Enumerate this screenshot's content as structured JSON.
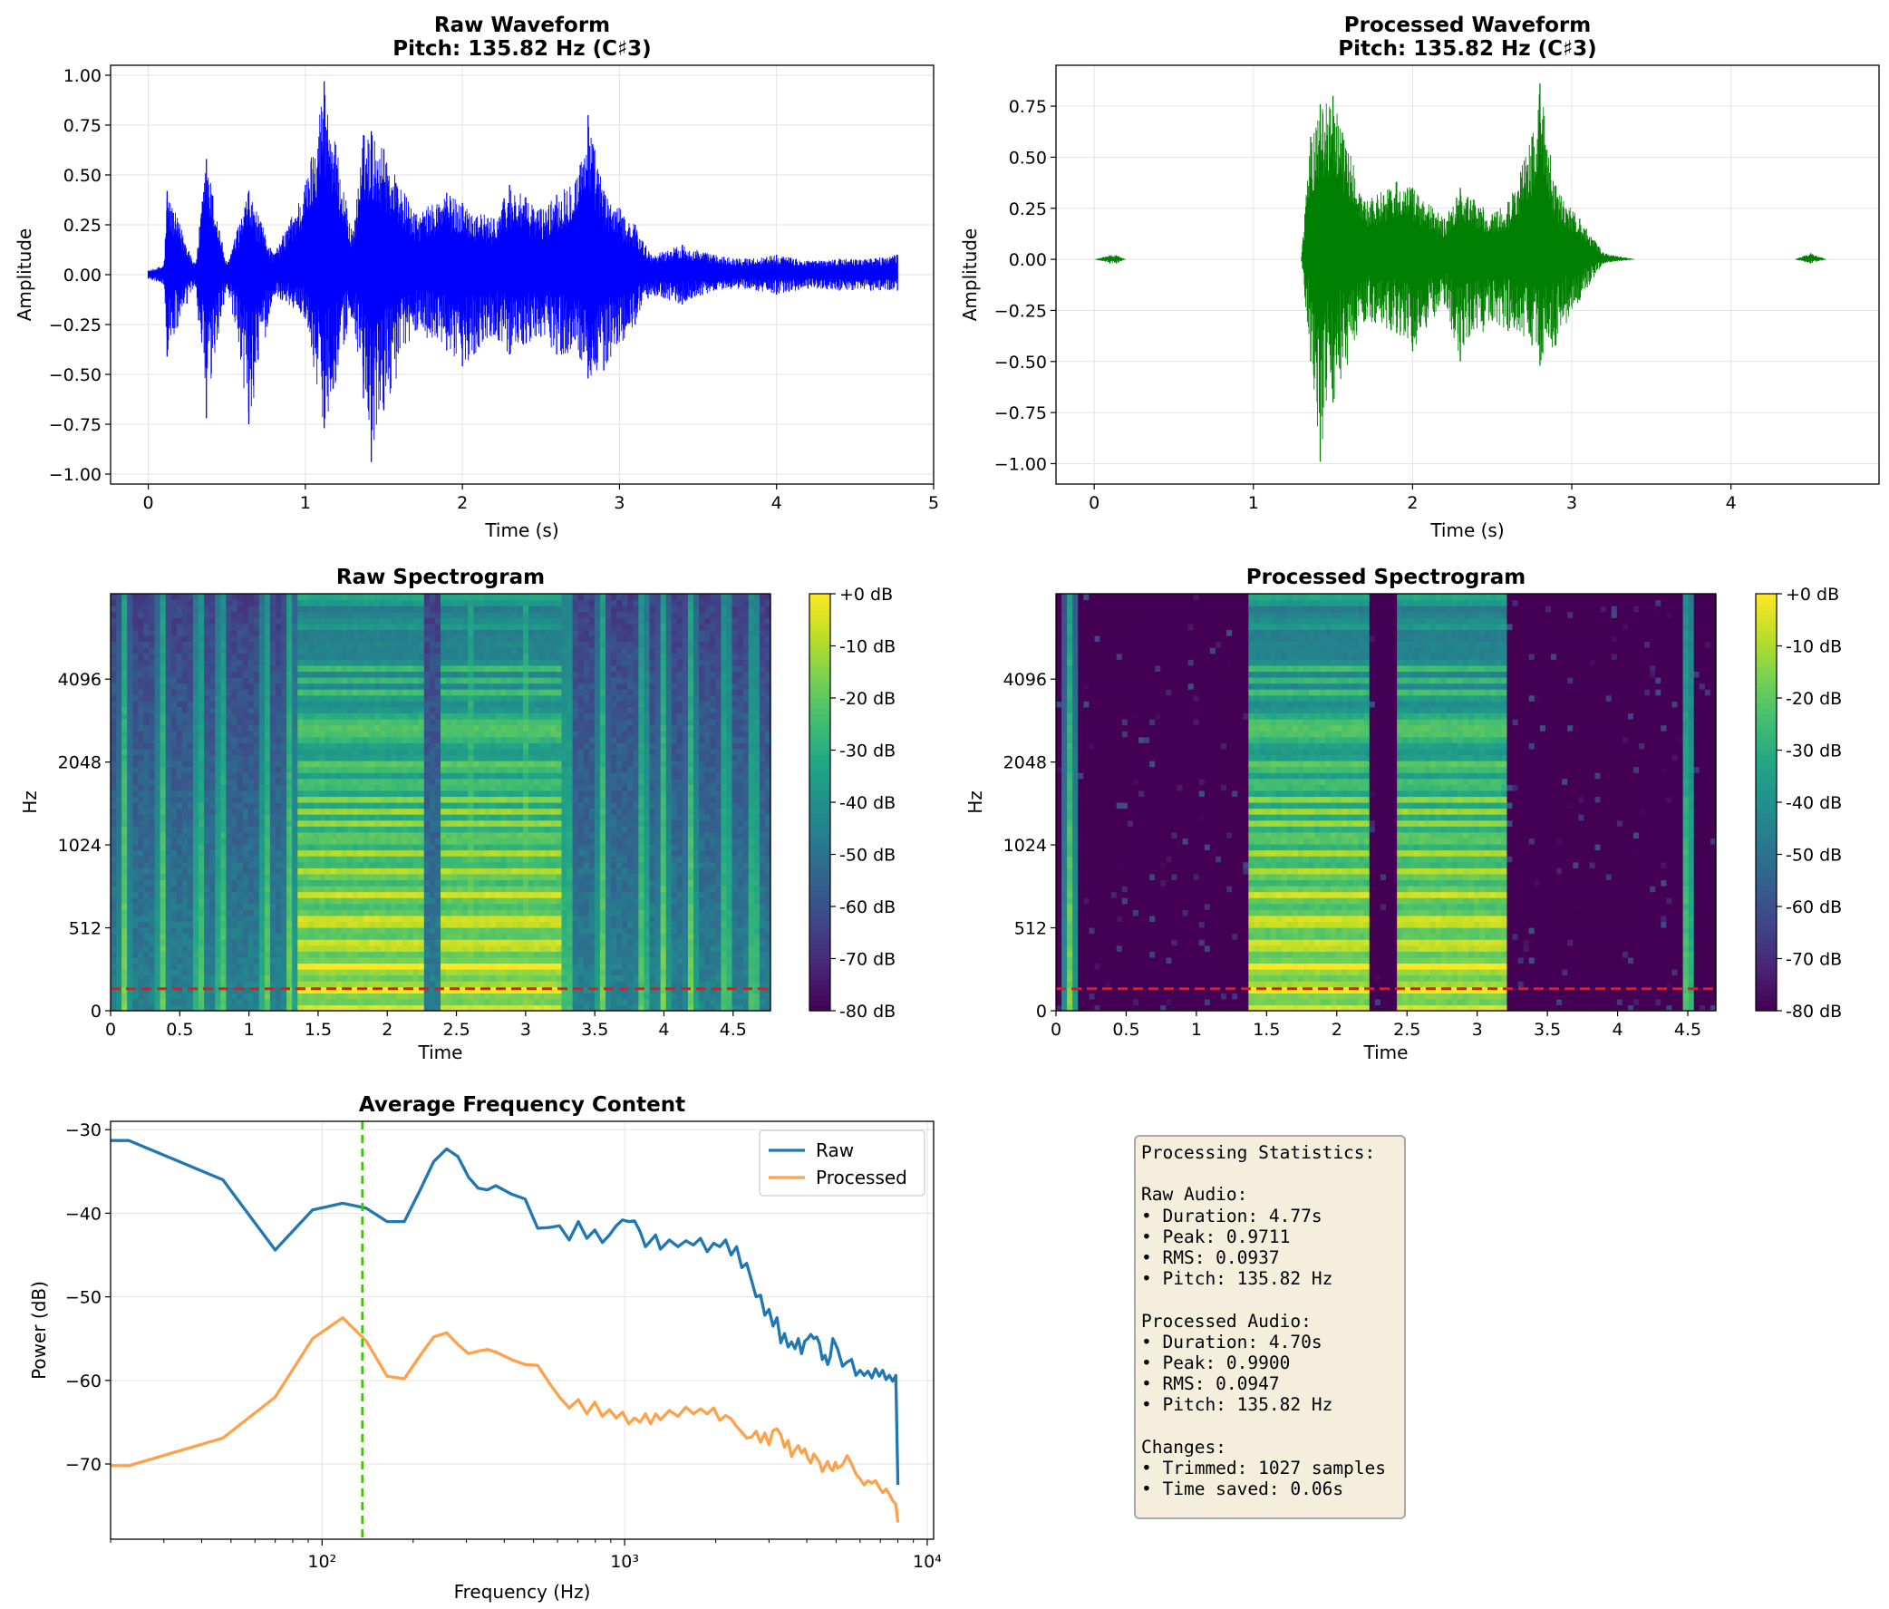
{
  "chart_data": [
    {
      "type": "line",
      "title": "Raw Waveform\nPitch: 135.82 Hz (C♯3)",
      "xlabel": "Time (s)",
      "ylabel": "Amplitude",
      "xlim": [
        -0.24,
        5.0
      ],
      "ylim": [
        -1.05,
        1.05
      ],
      "xticks": [
        "0",
        "1",
        "2",
        "3",
        "4",
        "5"
      ],
      "yticks": [
        "1.00",
        "0.75",
        "0.50",
        "0.25",
        "0.00",
        "−0.25",
        "−0.50",
        "−0.75",
        "−1.00"
      ],
      "color": "#0000ff",
      "duration": 4.77,
      "envelope": {
        "t": [
          0.0,
          0.1,
          0.12,
          0.3,
          0.37,
          0.5,
          0.64,
          0.8,
          1.0,
          1.12,
          1.3,
          1.37,
          1.42,
          1.5,
          1.7,
          1.9,
          2.0,
          2.2,
          2.3,
          2.5,
          2.6,
          2.75,
          2.8,
          2.9,
          3.1,
          3.2,
          3.4,
          3.6,
          3.8,
          4.0,
          4.2,
          4.4,
          4.6,
          4.77
        ],
        "max": [
          0.02,
          0.05,
          0.42,
          0.05,
          0.58,
          0.05,
          0.42,
          0.1,
          0.45,
          0.97,
          0.2,
          0.7,
          0.72,
          0.63,
          0.3,
          0.41,
          0.36,
          0.28,
          0.45,
          0.33,
          0.4,
          0.55,
          0.8,
          0.42,
          0.25,
          0.1,
          0.15,
          0.1,
          0.08,
          0.1,
          0.07,
          0.08,
          0.08,
          0.1
        ],
        "min": [
          -0.02,
          -0.05,
          -0.41,
          -0.05,
          -0.72,
          -0.05,
          -0.75,
          -0.1,
          -0.22,
          -0.77,
          -0.2,
          -0.62,
          -0.94,
          -0.68,
          -0.28,
          -0.38,
          -0.46,
          -0.3,
          -0.4,
          -0.31,
          -0.4,
          -0.42,
          -0.52,
          -0.48,
          -0.25,
          -0.1,
          -0.15,
          -0.08,
          -0.07,
          -0.1,
          -0.07,
          -0.08,
          -0.08,
          -0.08
        ]
      }
    },
    {
      "type": "line",
      "title": "Processed Waveform\nPitch: 135.82 Hz (C♯3)",
      "xlabel": "Time (s)",
      "ylabel": "Amplitude",
      "xlim": [
        -0.24,
        4.93
      ],
      "ylim": [
        -1.1,
        0.95
      ],
      "xticks": [
        "0",
        "1",
        "2",
        "3",
        "4"
      ],
      "yticks": [
        "0.75",
        "0.50",
        "0.25",
        "0.00",
        "−0.25",
        "−0.50",
        "−0.75",
        "−1.00"
      ],
      "color": "#008000",
      "duration": 4.7,
      "envelope": {
        "t": [
          0.0,
          0.1,
          0.14,
          0.2,
          1.3,
          1.36,
          1.42,
          1.5,
          1.7,
          1.9,
          2.0,
          2.2,
          2.3,
          2.5,
          2.6,
          2.75,
          2.8,
          2.9,
          3.05,
          3.2,
          3.4,
          4.4,
          4.5,
          4.6,
          4.7
        ],
        "max": [
          0.0,
          0.02,
          0.02,
          0.0,
          0.0,
          0.6,
          0.76,
          0.8,
          0.28,
          0.38,
          0.35,
          0.2,
          0.35,
          0.22,
          0.28,
          0.6,
          0.86,
          0.36,
          0.2,
          0.03,
          0.0,
          0.0,
          0.03,
          0.0,
          0.0
        ],
        "min": [
          0.0,
          -0.02,
          -0.02,
          0.0,
          0.0,
          -0.5,
          -0.99,
          -0.7,
          -0.3,
          -0.36,
          -0.45,
          -0.22,
          -0.5,
          -0.3,
          -0.35,
          -0.42,
          -0.52,
          -0.42,
          -0.2,
          -0.02,
          0.0,
          0.0,
          -0.02,
          0.0,
          0.0
        ]
      }
    },
    {
      "type": "heatmap",
      "title": "Raw Spectrogram",
      "xlabel": "Time",
      "ylabel": "Hz",
      "xticks": [
        "0",
        "0.5",
        "1",
        "1.5",
        "2",
        "2.5",
        "3",
        "3.5",
        "4",
        "4.5"
      ],
      "yticks": [
        "0",
        "512",
        "1024",
        "2048",
        "4096"
      ],
      "colorbar_ticks": [
        "+0 dB",
        "-10 dB",
        "-20 dB",
        "-30 dB",
        "-40 dB",
        "-50 dB",
        "-60 dB",
        "-70 dB",
        "-80 dB"
      ],
      "colormap": "viridis",
      "pitch_line_hz": 135.82,
      "pitch_line_color": "#e41a1c",
      "duration": 4.77,
      "transients_s": [
        0.1,
        0.37,
        0.64,
        0.8,
        1.12,
        1.3,
        2.6,
        3.0,
        3.3,
        3.55,
        3.85,
        4.0,
        4.2,
        4.45,
        4.65
      ],
      "voiced_segments_s": [
        [
          1.35,
          2.25
        ],
        [
          2.4,
          3.25
        ]
      ],
      "noise_floor_db": -45
    },
    {
      "type": "heatmap",
      "title": "Processed Spectrogram",
      "xlabel": "Time",
      "ylabel": "Hz",
      "xticks": [
        "0",
        "0.5",
        "1",
        "1.5",
        "2",
        "2.5",
        "3",
        "3.5",
        "4",
        "4.5"
      ],
      "yticks": [
        "0",
        "512",
        "1024",
        "2048",
        "4096"
      ],
      "colorbar_ticks": [
        "+0 dB",
        "-10 dB",
        "-20 dB",
        "-30 dB",
        "-40 dB",
        "-50 dB",
        "-60 dB",
        "-70 dB",
        "-80 dB"
      ],
      "colormap": "viridis",
      "pitch_line_hz": 135.82,
      "pitch_line_color": "#e41a1c",
      "duration": 4.7,
      "transients_s": [
        0.1,
        4.5
      ],
      "voiced_segments_s": [
        [
          1.36,
          2.25
        ],
        [
          2.42,
          3.2
        ]
      ],
      "noise_floor_db": -80
    },
    {
      "type": "line",
      "title": "Average Frequency Content",
      "xlabel": "Frequency (Hz)",
      "ylabel": "Power (dB)",
      "xscale": "log",
      "xlim": [
        20,
        10500
      ],
      "ylim": [
        -79,
        -29
      ],
      "yticks": [
        -30,
        -40,
        -50,
        -60,
        -70
      ],
      "xticks": [
        "10²",
        "10³",
        "10⁴"
      ],
      "grid": true,
      "legend": "top-right",
      "vline_hz": 135.82,
      "vline_color": "#33cc00",
      "series": [
        {
          "name": "Raw",
          "color": "#1f77b4",
          "x": [
            20,
            23,
            47,
            70,
            93,
            117,
            140,
            164,
            187,
            211,
            234,
            258,
            281,
            305,
            328,
            352,
            375,
            422,
            469,
            516,
            563,
            609,
            656,
            703,
            750,
            797,
            844,
            891,
            938,
            984,
            1031,
            1078,
            1125,
            1172,
            1219,
            1266,
            1313,
            1406,
            1500,
            1594,
            1688,
            1781,
            1875,
            1969,
            2063,
            2156,
            2250,
            2344,
            2438,
            2531,
            2625,
            2719,
            2813,
            2906,
            3000,
            3094,
            3188,
            3281,
            3375,
            3469,
            3563,
            3656,
            3750,
            3844,
            3938,
            4031,
            4125,
            4219,
            4313,
            4406,
            4500,
            4594,
            4688,
            4781,
            4875,
            4969,
            5063,
            5250,
            5438,
            5625,
            5813,
            6000,
            6188,
            6375,
            6563,
            6750,
            6938,
            7125,
            7313,
            7500,
            7688,
            7875,
            8000
          ],
          "y": [
            -31.3,
            -31.3,
            -36.0,
            -44.4,
            -39.6,
            -38.8,
            -39.4,
            -41.0,
            -41.0,
            -37.2,
            -33.8,
            -32.3,
            -33.2,
            -35.7,
            -37.0,
            -37.2,
            -36.7,
            -37.7,
            -38.3,
            -41.8,
            -41.7,
            -41.5,
            -43.2,
            -41.0,
            -43.0,
            -42.0,
            -43.5,
            -42.6,
            -41.5,
            -40.8,
            -41.0,
            -40.9,
            -42.2,
            -44.0,
            -43.3,
            -42.6,
            -44.3,
            -43.2,
            -44.0,
            -43.3,
            -43.8,
            -43.0,
            -44.6,
            -43.6,
            -44.0,
            -43.2,
            -45.0,
            -44.0,
            -46.5,
            -46.0,
            -48.0,
            -50.0,
            -49.8,
            -52.2,
            -51.5,
            -53.5,
            -52.5,
            -55.5,
            -54.4,
            -56.0,
            -55.4,
            -56.2,
            -55.0,
            -56.8,
            -55.3,
            -55.0,
            -54.5,
            -55.0,
            -54.8,
            -55.6,
            -57.5,
            -57.0,
            -58.1,
            -57.2,
            -55.0,
            -55.6,
            -56.3,
            -58.3,
            -57.8,
            -57.5,
            -59.4,
            -58.8,
            -59.4,
            -58.9,
            -59.7,
            -58.6,
            -59.5,
            -58.8,
            -59.9,
            -59.4,
            -60.1,
            -59.4,
            -72.5
          ]
        },
        {
          "name": "Processed",
          "color": "#ffa04a",
          "x": [
            20,
            23,
            47,
            70,
            93,
            117,
            140,
            164,
            187,
            211,
            234,
            258,
            281,
            305,
            328,
            352,
            375,
            422,
            469,
            516,
            563,
            609,
            656,
            703,
            750,
            797,
            844,
            891,
            938,
            984,
            1031,
            1078,
            1125,
            1172,
            1219,
            1266,
            1313,
            1406,
            1500,
            1594,
            1688,
            1781,
            1875,
            1969,
            2063,
            2156,
            2250,
            2344,
            2438,
            2531,
            2625,
            2719,
            2813,
            2906,
            3000,
            3094,
            3188,
            3281,
            3375,
            3469,
            3563,
            3656,
            3750,
            3844,
            3938,
            4031,
            4125,
            4219,
            4313,
            4406,
            4500,
            4594,
            4688,
            4781,
            4875,
            4969,
            5063,
            5250,
            5438,
            5625,
            5813,
            6000,
            6188,
            6375,
            6563,
            6750,
            6938,
            7125,
            7313,
            7500,
            7688,
            7875,
            8000
          ],
          "y": [
            -70.2,
            -70.2,
            -66.9,
            -62.0,
            -55.0,
            -52.5,
            -55.3,
            -59.5,
            -59.8,
            -57.0,
            -54.8,
            -54.3,
            -55.7,
            -56.8,
            -56.5,
            -56.3,
            -56.6,
            -57.5,
            -58.1,
            -58.2,
            -60.3,
            -62.0,
            -63.3,
            -62.3,
            -64.0,
            -62.6,
            -64.3,
            -63.5,
            -64.5,
            -63.8,
            -65.2,
            -64.5,
            -65.0,
            -64.0,
            -65.2,
            -64.0,
            -64.7,
            -63.6,
            -64.3,
            -63.2,
            -64.0,
            -63.4,
            -64.0,
            -63.3,
            -64.8,
            -64.2,
            -64.6,
            -65.5,
            -66.2,
            -66.9,
            -66.8,
            -66.1,
            -67.4,
            -66.3,
            -67.7,
            -66.0,
            -65.8,
            -66.5,
            -68.0,
            -67.2,
            -69.1,
            -68.3,
            -67.8,
            -68.7,
            -68.2,
            -69.3,
            -69.9,
            -68.8,
            -69.3,
            -69.8,
            -70.9,
            -70.3,
            -69.7,
            -70.5,
            -70.8,
            -69.8,
            -70.5,
            -70.1,
            -69.0,
            -70.0,
            -71.2,
            -71.8,
            -72.5,
            -72.0,
            -72.3,
            -72.0,
            -72.8,
            -73.4,
            -73.0,
            -73.6,
            -74.4,
            -74.8,
            -77.0
          ]
        }
      ]
    }
  ],
  "stats": {
    "header": "Processing Statistics:",
    "raw_title": "Raw Audio:",
    "raw_lines": [
      "• Duration: 4.77s",
      "• Peak: 0.9711",
      "• RMS: 0.0937",
      "• Pitch: 135.82 Hz"
    ],
    "proc_title": "Processed Audio:",
    "proc_lines": [
      "• Duration: 4.70s",
      "• Peak: 0.9900",
      "• RMS: 0.0947",
      "• Pitch: 135.82 Hz"
    ],
    "changes_title": "Changes:",
    "changes_lines": [
      "• Trimmed: 1027 samples",
      "• Time saved: 0.06s"
    ]
  }
}
